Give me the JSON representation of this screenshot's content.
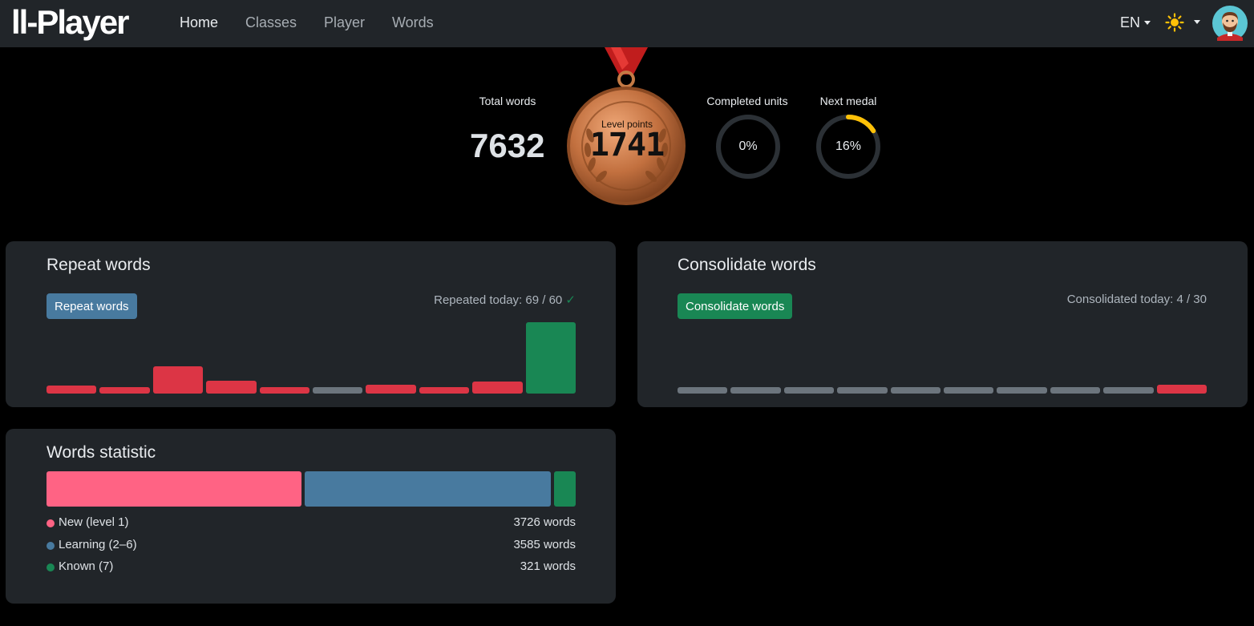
{
  "nav": {
    "brand": "ll-Player",
    "links": [
      "Home",
      "Classes",
      "Player",
      "Words"
    ],
    "active": "Home",
    "language": "EN",
    "theme_icon": "sun-icon",
    "avatar_icon": "user-avatar"
  },
  "hero": {
    "total_words_label": "Total words",
    "total_words": "7632",
    "medal_label": "Level points",
    "medal_points": "1741",
    "medal_type": "bronze",
    "completed_units_label": "Completed units",
    "completed_units_text": "0%",
    "completed_units_value": 0,
    "next_medal_label": "Next medal",
    "next_medal_text": "16%",
    "next_medal_value": 16
  },
  "repeat": {
    "title": "Repeat words",
    "button": "Repeat words",
    "today": "Repeated today: 69 / 60",
    "check": "✓",
    "bars": [
      {
        "level": 0.11,
        "color": "#dc3545"
      },
      {
        "level": 0.09,
        "color": "#dc3545"
      },
      {
        "level": 0.38,
        "color": "#dc3545"
      },
      {
        "level": 0.18,
        "color": "#dc3545"
      },
      {
        "level": 0.09,
        "color": "#dc3545"
      },
      {
        "level": 0.09,
        "color": "#6c757d"
      },
      {
        "level": 0.12,
        "color": "#dc3545"
      },
      {
        "level": 0.09,
        "color": "#dc3545"
      },
      {
        "level": 0.17,
        "color": "#dc3545"
      },
      {
        "level": 1.0,
        "color": "#198754"
      }
    ]
  },
  "consolidate": {
    "title": "Consolidate words",
    "button": "Consolidate words",
    "today": "Consolidated today: 4 / 30",
    "bars": [
      {
        "level": 0.09,
        "color": "#6c757d"
      },
      {
        "level": 0.09,
        "color": "#6c757d"
      },
      {
        "level": 0.09,
        "color": "#6c757d"
      },
      {
        "level": 0.09,
        "color": "#6c757d"
      },
      {
        "level": 0.09,
        "color": "#6c757d"
      },
      {
        "level": 0.09,
        "color": "#6c757d"
      },
      {
        "level": 0.09,
        "color": "#6c757d"
      },
      {
        "level": 0.09,
        "color": "#6c757d"
      },
      {
        "level": 0.09,
        "color": "#6c757d"
      },
      {
        "level": 0.12,
        "color": "#dc3545"
      }
    ]
  },
  "statistic": {
    "title": "Words statistic",
    "items": [
      {
        "name": "New (level 1)",
        "count": 3726,
        "label": "3726 words",
        "color": "#ff6384"
      },
      {
        "name": "Learning (2–6)",
        "count": 3585,
        "label": "3585 words",
        "color": "#487a9f"
      },
      {
        "name": "Known (7)",
        "count": 321,
        "label": "321 words",
        "color": "#198754"
      }
    ]
  },
  "colors": {
    "background": "#000000",
    "card": "#212529",
    "navbar": "#212529",
    "ring_track": "#2b3035",
    "ring_progress": "#ffc107"
  }
}
